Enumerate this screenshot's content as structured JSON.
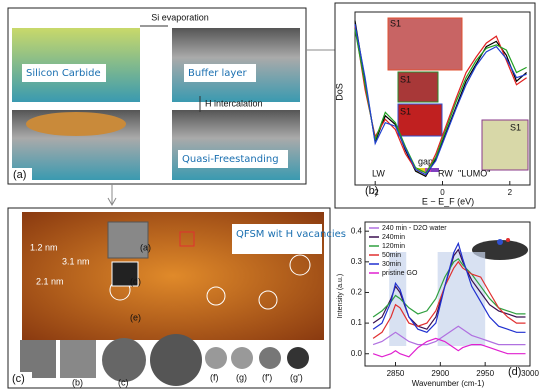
{
  "figure": {
    "panel_a": {
      "label": "(a)",
      "step1": "Si evaporation",
      "step2": "H intercalation",
      "stage1": "Silicon Carbide",
      "stage2": "Buffer layer",
      "stage3": "Quasi-Freestanding"
    },
    "panel_c": {
      "label": "(c)",
      "caption": "QFSM wit H vacancies",
      "scale_labels": [
        "1.2 nm",
        "2.1 nm",
        "3.1 nm"
      ],
      "insets": [
        "(a)",
        "(d)",
        "(e)",
        "(b)",
        "(c)",
        "(f)",
        "(g)",
        "(f')",
        "(g')"
      ]
    }
  },
  "chart_data": [
    {
      "type": "line",
      "label": "(b)",
      "xlabel": "E − E_F (eV)",
      "ylabel": "DoS",
      "annotations": [
        "LW",
        "gap",
        "RW",
        "\"LUMO\""
      ],
      "insets": [
        "S1",
        "S1",
        "S1",
        "S1"
      ],
      "x": [
        -2.6,
        -2.3,
        -2,
        -1.7,
        -1.4,
        -1.1,
        -0.8,
        -0.5,
        -0.2,
        0.1,
        0.4,
        0.7,
        1,
        1.3,
        1.6,
        1.9,
        2.2,
        2.5
      ],
      "xlim": [
        -2.6,
        2.6
      ],
      "xticks": [
        -2,
        0,
        2
      ],
      "ylim": [
        0,
        10
      ],
      "series": [
        {
          "color": "#000000",
          "values": [
            9.5,
            6,
            2.5,
            4,
            3.5,
            2,
            0.8,
            0.5,
            1.5,
            3,
            4.5,
            6,
            7,
            8,
            8.3,
            7.5,
            6,
            6.5
          ]
        },
        {
          "color": "#e02020",
          "values": [
            9.2,
            5.5,
            2.8,
            3.8,
            3.2,
            1.8,
            0.9,
            0.6,
            1.8,
            3.4,
            5,
            6.5,
            7.4,
            8.2,
            8.6,
            7.2,
            5.8,
            6.2
          ]
        },
        {
          "color": "#20a020",
          "values": [
            9.0,
            5.8,
            2.6,
            4.2,
            3.6,
            2.2,
            1,
            0.7,
            1.6,
            3.2,
            4.8,
            6.2,
            7.2,
            7.9,
            8.1,
            7.8,
            6.5,
            6.8
          ]
        },
        {
          "color": "#2040d0",
          "values": [
            9.3,
            6.2,
            2.4,
            3.6,
            3.4,
            2.1,
            0.9,
            0.6,
            1.4,
            2.9,
            4.4,
            5.8,
            6.9,
            7.7,
            8.0,
            7.3,
            6.2,
            6.4
          ]
        }
      ]
    },
    {
      "type": "line",
      "label": "(d)",
      "xlabel": "Wavenumber (cm-1)",
      "ylabel": "Intensity (a.u.)",
      "x": [
        2825,
        2835,
        2845,
        2850,
        2855,
        2865,
        2875,
        2885,
        2895,
        2905,
        2915,
        2920,
        2925,
        2935,
        2945,
        2955,
        2965,
        2975,
        2985,
        2995
      ],
      "xlim": [
        2816,
        3000
      ],
      "xticks": [
        2850,
        2900,
        2950,
        3000
      ],
      "ylim": [
        -0.04,
        0.43
      ],
      "yticks": [
        {
          "value": 0,
          "label": "0.0"
        },
        0.1,
        0.2,
        0.3,
        0.4
      ],
      "shaded_ranges": [
        [
          2843,
          2862
        ],
        [
          2897,
          2950
        ]
      ],
      "series": [
        {
          "name": "240 min - D2O water",
          "color": "#b070e0",
          "values": [
            0.03,
            0.04,
            0.06,
            0.07,
            0.06,
            0.04,
            0.03,
            0.03,
            0.04,
            0.06,
            0.08,
            0.09,
            0.08,
            0.06,
            0.05,
            0.04,
            0.03,
            0.03,
            0.03,
            0.03
          ]
        },
        {
          "name": "240min",
          "color": "#3a1050",
          "values": [
            0.1,
            0.12,
            0.18,
            0.22,
            0.2,
            0.12,
            0.09,
            0.08,
            0.12,
            0.22,
            0.32,
            0.34,
            0.3,
            0.24,
            0.2,
            0.16,
            0.14,
            0.13,
            0.12,
            0.12
          ]
        },
        {
          "name": "120min",
          "color": "#30a040",
          "values": [
            0.12,
            0.14,
            0.17,
            0.19,
            0.18,
            0.15,
            0.13,
            0.14,
            0.18,
            0.25,
            0.3,
            0.31,
            0.29,
            0.26,
            0.22,
            0.18,
            0.15,
            0.14,
            0.13,
            0.13
          ]
        },
        {
          "name": "50min",
          "color": "#e03030",
          "values": [
            0.05,
            0.07,
            0.12,
            0.16,
            0.15,
            0.1,
            0.09,
            0.1,
            0.14,
            0.22,
            0.28,
            0.3,
            0.28,
            0.26,
            0.25,
            0.2,
            0.15,
            0.12,
            0.1,
            0.1
          ]
        },
        {
          "name": "30min",
          "color": "#2030d0",
          "values": [
            0.08,
            0.1,
            0.17,
            0.23,
            0.21,
            0.12,
            0.08,
            0.07,
            0.1,
            0.22,
            0.33,
            0.36,
            0.31,
            0.22,
            0.17,
            0.12,
            0.09,
            0.08,
            0.07,
            0.07
          ]
        },
        {
          "name": "pristine GO",
          "color": "#e020d0",
          "values": [
            0,
            -0.01,
            0,
            0.01,
            0,
            -0.01,
            0.02,
            0.04,
            0.05,
            0.04,
            0.02,
            0.01,
            0.02,
            0.03,
            0.03,
            0.02,
            0.01,
            0,
            0,
            0
          ]
        }
      ]
    }
  ]
}
